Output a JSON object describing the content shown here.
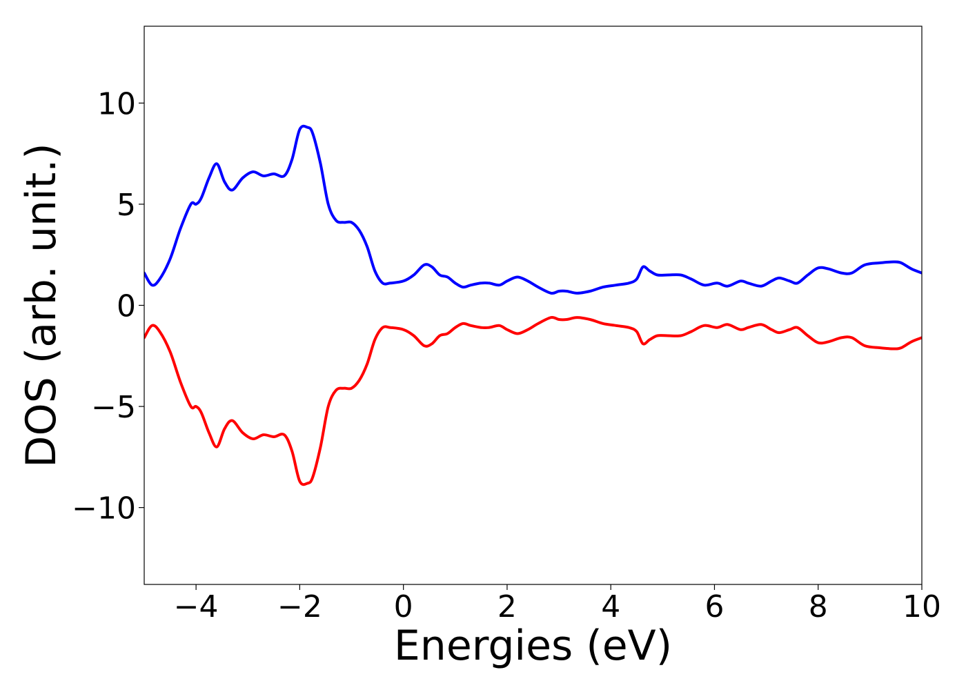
{
  "chart_data": {
    "type": "line",
    "xlabel": "Energies (eV)",
    "ylabel": "DOS (arb. unit.)",
    "xlim": [
      -5,
      10
    ],
    "ylim": [
      -13.8,
      13.8
    ],
    "grid": false,
    "legend": "none",
    "x_ticks": [
      {
        "value": -4,
        "label": "−4"
      },
      {
        "value": -2,
        "label": "−2"
      },
      {
        "value": 0,
        "label": "0"
      },
      {
        "value": 2,
        "label": "2"
      },
      {
        "value": 4,
        "label": "4"
      },
      {
        "value": 6,
        "label": "6"
      },
      {
        "value": 8,
        "label": "8"
      },
      {
        "value": 10,
        "label": "10"
      }
    ],
    "y_ticks": [
      {
        "value": 10,
        "label": "10"
      },
      {
        "value": 5,
        "label": "5"
      },
      {
        "value": 0,
        "label": "0"
      },
      {
        "value": -5,
        "label": "−5"
      },
      {
        "value": -10,
        "label": "−10"
      }
    ],
    "series": [
      {
        "color": "#0000ff",
        "x": [
          -5.0,
          -4.85,
          -4.7,
          -4.5,
          -4.3,
          -4.1,
          -4.0,
          -3.9,
          -3.75,
          -3.6,
          -3.45,
          -3.3,
          -3.1,
          -2.9,
          -2.7,
          -2.5,
          -2.3,
          -2.15,
          -2.0,
          -1.85,
          -1.75,
          -1.6,
          -1.45,
          -1.3,
          -1.15,
          -1.0,
          -0.85,
          -0.7,
          -0.55,
          -0.4,
          -0.25,
          0.0,
          0.2,
          0.4,
          0.55,
          0.7,
          0.85,
          1.0,
          1.15,
          1.3,
          1.5,
          1.65,
          1.85,
          2.0,
          2.2,
          2.4,
          2.6,
          2.85,
          3.0,
          3.15,
          3.35,
          3.6,
          3.85,
          4.1,
          4.35,
          4.5,
          4.62,
          4.75,
          4.9,
          5.1,
          5.35,
          5.55,
          5.8,
          6.05,
          6.25,
          6.5,
          6.65,
          6.9,
          7.1,
          7.25,
          7.45,
          7.6,
          7.8,
          8.0,
          8.2,
          8.45,
          8.65,
          8.9,
          9.2,
          9.45,
          9.6,
          9.8,
          10.0
        ],
        "values": [
          1.6,
          1.0,
          1.3,
          2.3,
          3.8,
          5.0,
          5.0,
          5.3,
          6.3,
          7.0,
          6.1,
          5.7,
          6.3,
          6.6,
          6.4,
          6.5,
          6.4,
          7.2,
          8.7,
          8.8,
          8.5,
          7.0,
          5.0,
          4.2,
          4.1,
          4.1,
          3.7,
          2.9,
          1.7,
          1.1,
          1.1,
          1.2,
          1.5,
          2.0,
          1.9,
          1.5,
          1.4,
          1.1,
          0.9,
          1.0,
          1.1,
          1.1,
          1.0,
          1.2,
          1.4,
          1.2,
          0.9,
          0.6,
          0.7,
          0.7,
          0.6,
          0.7,
          0.9,
          1.0,
          1.1,
          1.3,
          1.9,
          1.7,
          1.5,
          1.5,
          1.5,
          1.3,
          1.0,
          1.1,
          0.95,
          1.2,
          1.1,
          0.95,
          1.2,
          1.35,
          1.2,
          1.1,
          1.5,
          1.85,
          1.8,
          1.6,
          1.6,
          2.0,
          2.1,
          2.15,
          2.1,
          1.8,
          1.6
        ]
      },
      {
        "color": "#ff0000",
        "x": [
          -5.0,
          -4.85,
          -4.7,
          -4.5,
          -4.3,
          -4.1,
          -4.0,
          -3.9,
          -3.75,
          -3.6,
          -3.45,
          -3.3,
          -3.1,
          -2.9,
          -2.7,
          -2.5,
          -2.3,
          -2.15,
          -2.0,
          -1.85,
          -1.75,
          -1.6,
          -1.45,
          -1.3,
          -1.15,
          -1.0,
          -0.85,
          -0.7,
          -0.55,
          -0.4,
          -0.25,
          0.0,
          0.2,
          0.4,
          0.55,
          0.7,
          0.85,
          1.0,
          1.15,
          1.3,
          1.5,
          1.65,
          1.85,
          2.0,
          2.2,
          2.4,
          2.6,
          2.85,
          3.0,
          3.15,
          3.35,
          3.6,
          3.85,
          4.1,
          4.35,
          4.5,
          4.62,
          4.75,
          4.9,
          5.1,
          5.35,
          5.55,
          5.8,
          6.05,
          6.25,
          6.5,
          6.65,
          6.9,
          7.1,
          7.25,
          7.45,
          7.6,
          7.8,
          8.0,
          8.2,
          8.45,
          8.65,
          8.9,
          9.2,
          9.45,
          9.6,
          9.8,
          10.0
        ],
        "values": [
          -1.6,
          -1.0,
          -1.3,
          -2.3,
          -3.8,
          -5.0,
          -5.0,
          -5.3,
          -6.3,
          -7.0,
          -6.1,
          -5.7,
          -6.3,
          -6.6,
          -6.4,
          -6.5,
          -6.4,
          -7.2,
          -8.7,
          -8.8,
          -8.5,
          -7.0,
          -5.0,
          -4.2,
          -4.1,
          -4.1,
          -3.7,
          -2.9,
          -1.7,
          -1.1,
          -1.1,
          -1.2,
          -1.5,
          -2.0,
          -1.9,
          -1.5,
          -1.4,
          -1.1,
          -0.9,
          -1.0,
          -1.1,
          -1.1,
          -1.0,
          -1.2,
          -1.4,
          -1.2,
          -0.9,
          -0.6,
          -0.7,
          -0.7,
          -0.6,
          -0.7,
          -0.9,
          -1.0,
          -1.1,
          -1.3,
          -1.9,
          -1.7,
          -1.5,
          -1.5,
          -1.5,
          -1.3,
          -1.0,
          -1.1,
          -0.95,
          -1.2,
          -1.1,
          -0.95,
          -1.2,
          -1.35,
          -1.2,
          -1.1,
          -1.5,
          -1.85,
          -1.8,
          -1.6,
          -1.6,
          -2.0,
          -2.1,
          -2.15,
          -2.1,
          -1.8,
          -1.6
        ]
      }
    ]
  }
}
